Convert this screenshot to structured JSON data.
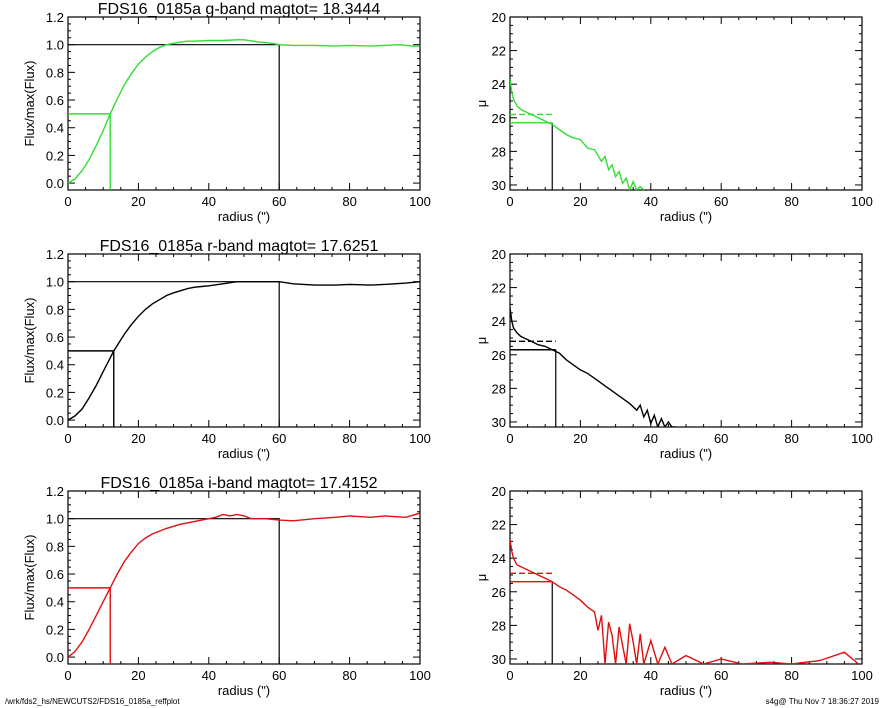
{
  "footer": {
    "left": "/wrk/fds2_hs/NEWCUTS2/FDS16_0185a_reffplot",
    "right": "s4g@  Thu Nov  7 18:36:27 2019"
  },
  "colors": {
    "g": "#33dd33",
    "r": "#000000",
    "i": "#e01010",
    "axis": "#000000"
  },
  "chart_data": [
    {
      "type": "line",
      "panel": "growth-curve",
      "band": "g",
      "title": "FDS16_0185a g-band  magtot=     18.3444",
      "xlabel": "radius (\")",
      "ylabel": "Flux/max(Flux)",
      "xlim": [
        0,
        100
      ],
      "ylim": [
        -0.05,
        1.2
      ],
      "xticks": [
        "0",
        "20",
        "40",
        "60",
        "80",
        "100"
      ],
      "yticks": [
        "0.0",
        "0.2",
        "0.4",
        "0.6",
        "0.8",
        "1.0",
        "1.2"
      ],
      "half_light_radius": 12,
      "total_radius": 60,
      "series": [
        {
          "color": "#33dd33",
          "x": [
            0,
            2,
            4,
            6,
            8,
            10,
            12,
            14,
            16,
            18,
            20,
            22,
            24,
            26,
            28,
            30,
            32,
            34,
            36,
            40,
            44,
            48,
            50,
            54,
            58,
            60,
            64,
            70,
            76,
            80,
            86,
            90,
            94,
            98,
            100
          ],
          "y": [
            0.0,
            0.03,
            0.09,
            0.17,
            0.27,
            0.38,
            0.5,
            0.61,
            0.71,
            0.79,
            0.86,
            0.91,
            0.95,
            0.98,
            1.0,
            1.01,
            1.02,
            1.025,
            1.025,
            1.03,
            1.03,
            1.035,
            1.035,
            1.02,
            1.01,
            1.0,
            0.995,
            0.995,
            0.99,
            0.995,
            0.99,
            0.995,
            1.0,
            0.99,
            0.99
          ]
        }
      ]
    },
    {
      "type": "line",
      "panel": "surface-brightness",
      "band": "g",
      "title": "",
      "xlabel": "radius (\")",
      "ylabel": "μ",
      "xlim": [
        0,
        100
      ],
      "ylim": [
        20,
        30.3
      ],
      "inverted_y": true,
      "xticks": [
        "0",
        "20",
        "40",
        "60",
        "80",
        "100"
      ],
      "yticks": [
        "20",
        "22",
        "24",
        "26",
        "28",
        "30"
      ],
      "half_light_radius": 12,
      "mu_half": 26.3,
      "mu_mean": 25.8,
      "series": [
        {
          "color": "#33dd33",
          "x": [
            0,
            0.5,
            1,
            2,
            3,
            4,
            6,
            8,
            10,
            12,
            14,
            16,
            18,
            20,
            22,
            24,
            26,
            27,
            28,
            29,
            30,
            31,
            32,
            33,
            34,
            35,
            36,
            37,
            38
          ],
          "y": [
            23.7,
            24.5,
            24.9,
            25.3,
            25.5,
            25.6,
            25.8,
            26.0,
            26.2,
            26.4,
            26.7,
            27.0,
            27.2,
            27.3,
            27.8,
            27.9,
            28.6,
            28.3,
            29.1,
            28.8,
            29.5,
            29.2,
            29.9,
            29.6,
            30.3,
            29.8,
            30.3,
            30.1,
            30.3
          ]
        }
      ]
    },
    {
      "type": "line",
      "panel": "growth-curve",
      "band": "r",
      "title": "FDS16_0185a r-band  magtot=     17.6251",
      "xlabel": "radius (\")",
      "ylabel": "Flux/max(Flux)",
      "xlim": [
        0,
        100
      ],
      "ylim": [
        -0.05,
        1.2
      ],
      "xticks": [
        "0",
        "20",
        "40",
        "60",
        "80",
        "100"
      ],
      "yticks": [
        "0.0",
        "0.2",
        "0.4",
        "0.6",
        "0.8",
        "1.0",
        "1.2"
      ],
      "half_light_radius": 13,
      "total_radius": 60,
      "series": [
        {
          "color": "#000000",
          "x": [
            0,
            2,
            4,
            6,
            8,
            10,
            13,
            16,
            18,
            20,
            22,
            24,
            26,
            28,
            30,
            32,
            34,
            36,
            38,
            40,
            44,
            48,
            52,
            56,
            60,
            64,
            70,
            76,
            80,
            86,
            90,
            96,
            100
          ],
          "y": [
            0.0,
            0.03,
            0.08,
            0.16,
            0.25,
            0.35,
            0.5,
            0.62,
            0.69,
            0.75,
            0.8,
            0.84,
            0.87,
            0.9,
            0.92,
            0.935,
            0.95,
            0.96,
            0.965,
            0.97,
            0.985,
            1.0,
            1.0,
            1.0,
            1.0,
            0.985,
            0.975,
            0.975,
            0.98,
            0.975,
            0.98,
            0.99,
            1.0
          ]
        }
      ]
    },
    {
      "type": "line",
      "panel": "surface-brightness",
      "band": "r",
      "title": "",
      "xlabel": "radius (\")",
      "ylabel": "μ",
      "xlim": [
        0,
        100
      ],
      "ylim": [
        20,
        30.3
      ],
      "inverted_y": true,
      "xticks": [
        "0",
        "20",
        "40",
        "60",
        "80",
        "100"
      ],
      "yticks": [
        "20",
        "22",
        "24",
        "26",
        "28",
        "30"
      ],
      "half_light_radius": 13,
      "mu_half": 25.7,
      "mu_mean": 25.2,
      "series": [
        {
          "color": "#000000",
          "x": [
            0,
            0.5,
            1,
            2,
            3,
            4,
            6,
            8,
            10,
            12,
            14,
            16,
            18,
            20,
            22,
            24,
            26,
            28,
            30,
            32,
            34,
            36,
            37,
            38,
            39,
            40,
            41,
            42,
            43,
            44,
            45,
            46,
            47
          ],
          "y": [
            23.2,
            24.0,
            24.4,
            24.7,
            24.9,
            25.0,
            25.2,
            25.4,
            25.5,
            25.7,
            25.9,
            26.3,
            26.6,
            26.9,
            27.1,
            27.4,
            27.7,
            28.0,
            28.3,
            28.6,
            28.9,
            29.3,
            29.0,
            29.7,
            29.3,
            30.1,
            29.6,
            30.3,
            29.8,
            30.3,
            30.0,
            30.3,
            30.3
          ]
        }
      ]
    },
    {
      "type": "line",
      "panel": "growth-curve",
      "band": "i",
      "title": "FDS16_0185a i-band  magtot=     17.4152",
      "xlabel": "radius (\")",
      "ylabel": "Flux/max(Flux)",
      "xlim": [
        0,
        100
      ],
      "ylim": [
        -0.05,
        1.2
      ],
      "xticks": [
        "0",
        "20",
        "40",
        "60",
        "80",
        "100"
      ],
      "yticks": [
        "0.0",
        "0.2",
        "0.4",
        "0.6",
        "0.8",
        "1.0",
        "1.2"
      ],
      "half_light_radius": 12,
      "total_radius": 60,
      "series": [
        {
          "color": "#e01010",
          "x": [
            0,
            2,
            4,
            6,
            8,
            10,
            12,
            14,
            16,
            18,
            20,
            22,
            24,
            26,
            28,
            30,
            32,
            34,
            36,
            38,
            40,
            42,
            44,
            46,
            48,
            50,
            52,
            56,
            60,
            64,
            70,
            76,
            80,
            86,
            90,
            96,
            100
          ],
          "y": [
            0.0,
            0.04,
            0.11,
            0.2,
            0.3,
            0.4,
            0.5,
            0.6,
            0.69,
            0.76,
            0.82,
            0.86,
            0.89,
            0.91,
            0.93,
            0.945,
            0.96,
            0.97,
            0.98,
            0.99,
            1.0,
            1.01,
            1.03,
            1.02,
            1.03,
            1.02,
            1.0,
            1.0,
            0.99,
            0.985,
            1.0,
            1.01,
            1.02,
            1.01,
            1.02,
            1.01,
            1.04
          ]
        }
      ]
    },
    {
      "type": "line",
      "panel": "surface-brightness",
      "band": "i",
      "title": "",
      "xlabel": "radius (\")",
      "ylabel": "μ",
      "xlim": [
        0,
        100
      ],
      "ylim": [
        20,
        30.3
      ],
      "inverted_y": true,
      "xticks": [
        "0",
        "20",
        "40",
        "60",
        "80",
        "100"
      ],
      "yticks": [
        "20",
        "22",
        "24",
        "26",
        "28",
        "30"
      ],
      "half_light_radius": 12,
      "mu_half": 25.4,
      "mu_mean": 24.9,
      "series": [
        {
          "color": "#e01010",
          "x": [
            0,
            0.5,
            1,
            2,
            4,
            6,
            8,
            10,
            12,
            14,
            16,
            18,
            20,
            22,
            24,
            25,
            26,
            27,
            28,
            29,
            30,
            31,
            32,
            33,
            34,
            35,
            36,
            37,
            38,
            40,
            42,
            44,
            46,
            50,
            55,
            60,
            66,
            74,
            80,
            88,
            95,
            99
          ],
          "y": [
            22.9,
            23.6,
            24.0,
            24.4,
            24.6,
            24.8,
            25.0,
            25.2,
            25.4,
            25.7,
            25.9,
            26.2,
            26.5,
            26.9,
            27.2,
            28.3,
            27.4,
            30.3,
            27.8,
            28.6,
            30.3,
            28.1,
            29.2,
            30.3,
            27.9,
            29.0,
            30.3,
            28.5,
            30.3,
            28.9,
            30.3,
            29.3,
            30.3,
            29.8,
            30.3,
            30.0,
            30.3,
            30.2,
            30.3,
            30.1,
            29.6,
            30.3
          ]
        }
      ]
    }
  ]
}
